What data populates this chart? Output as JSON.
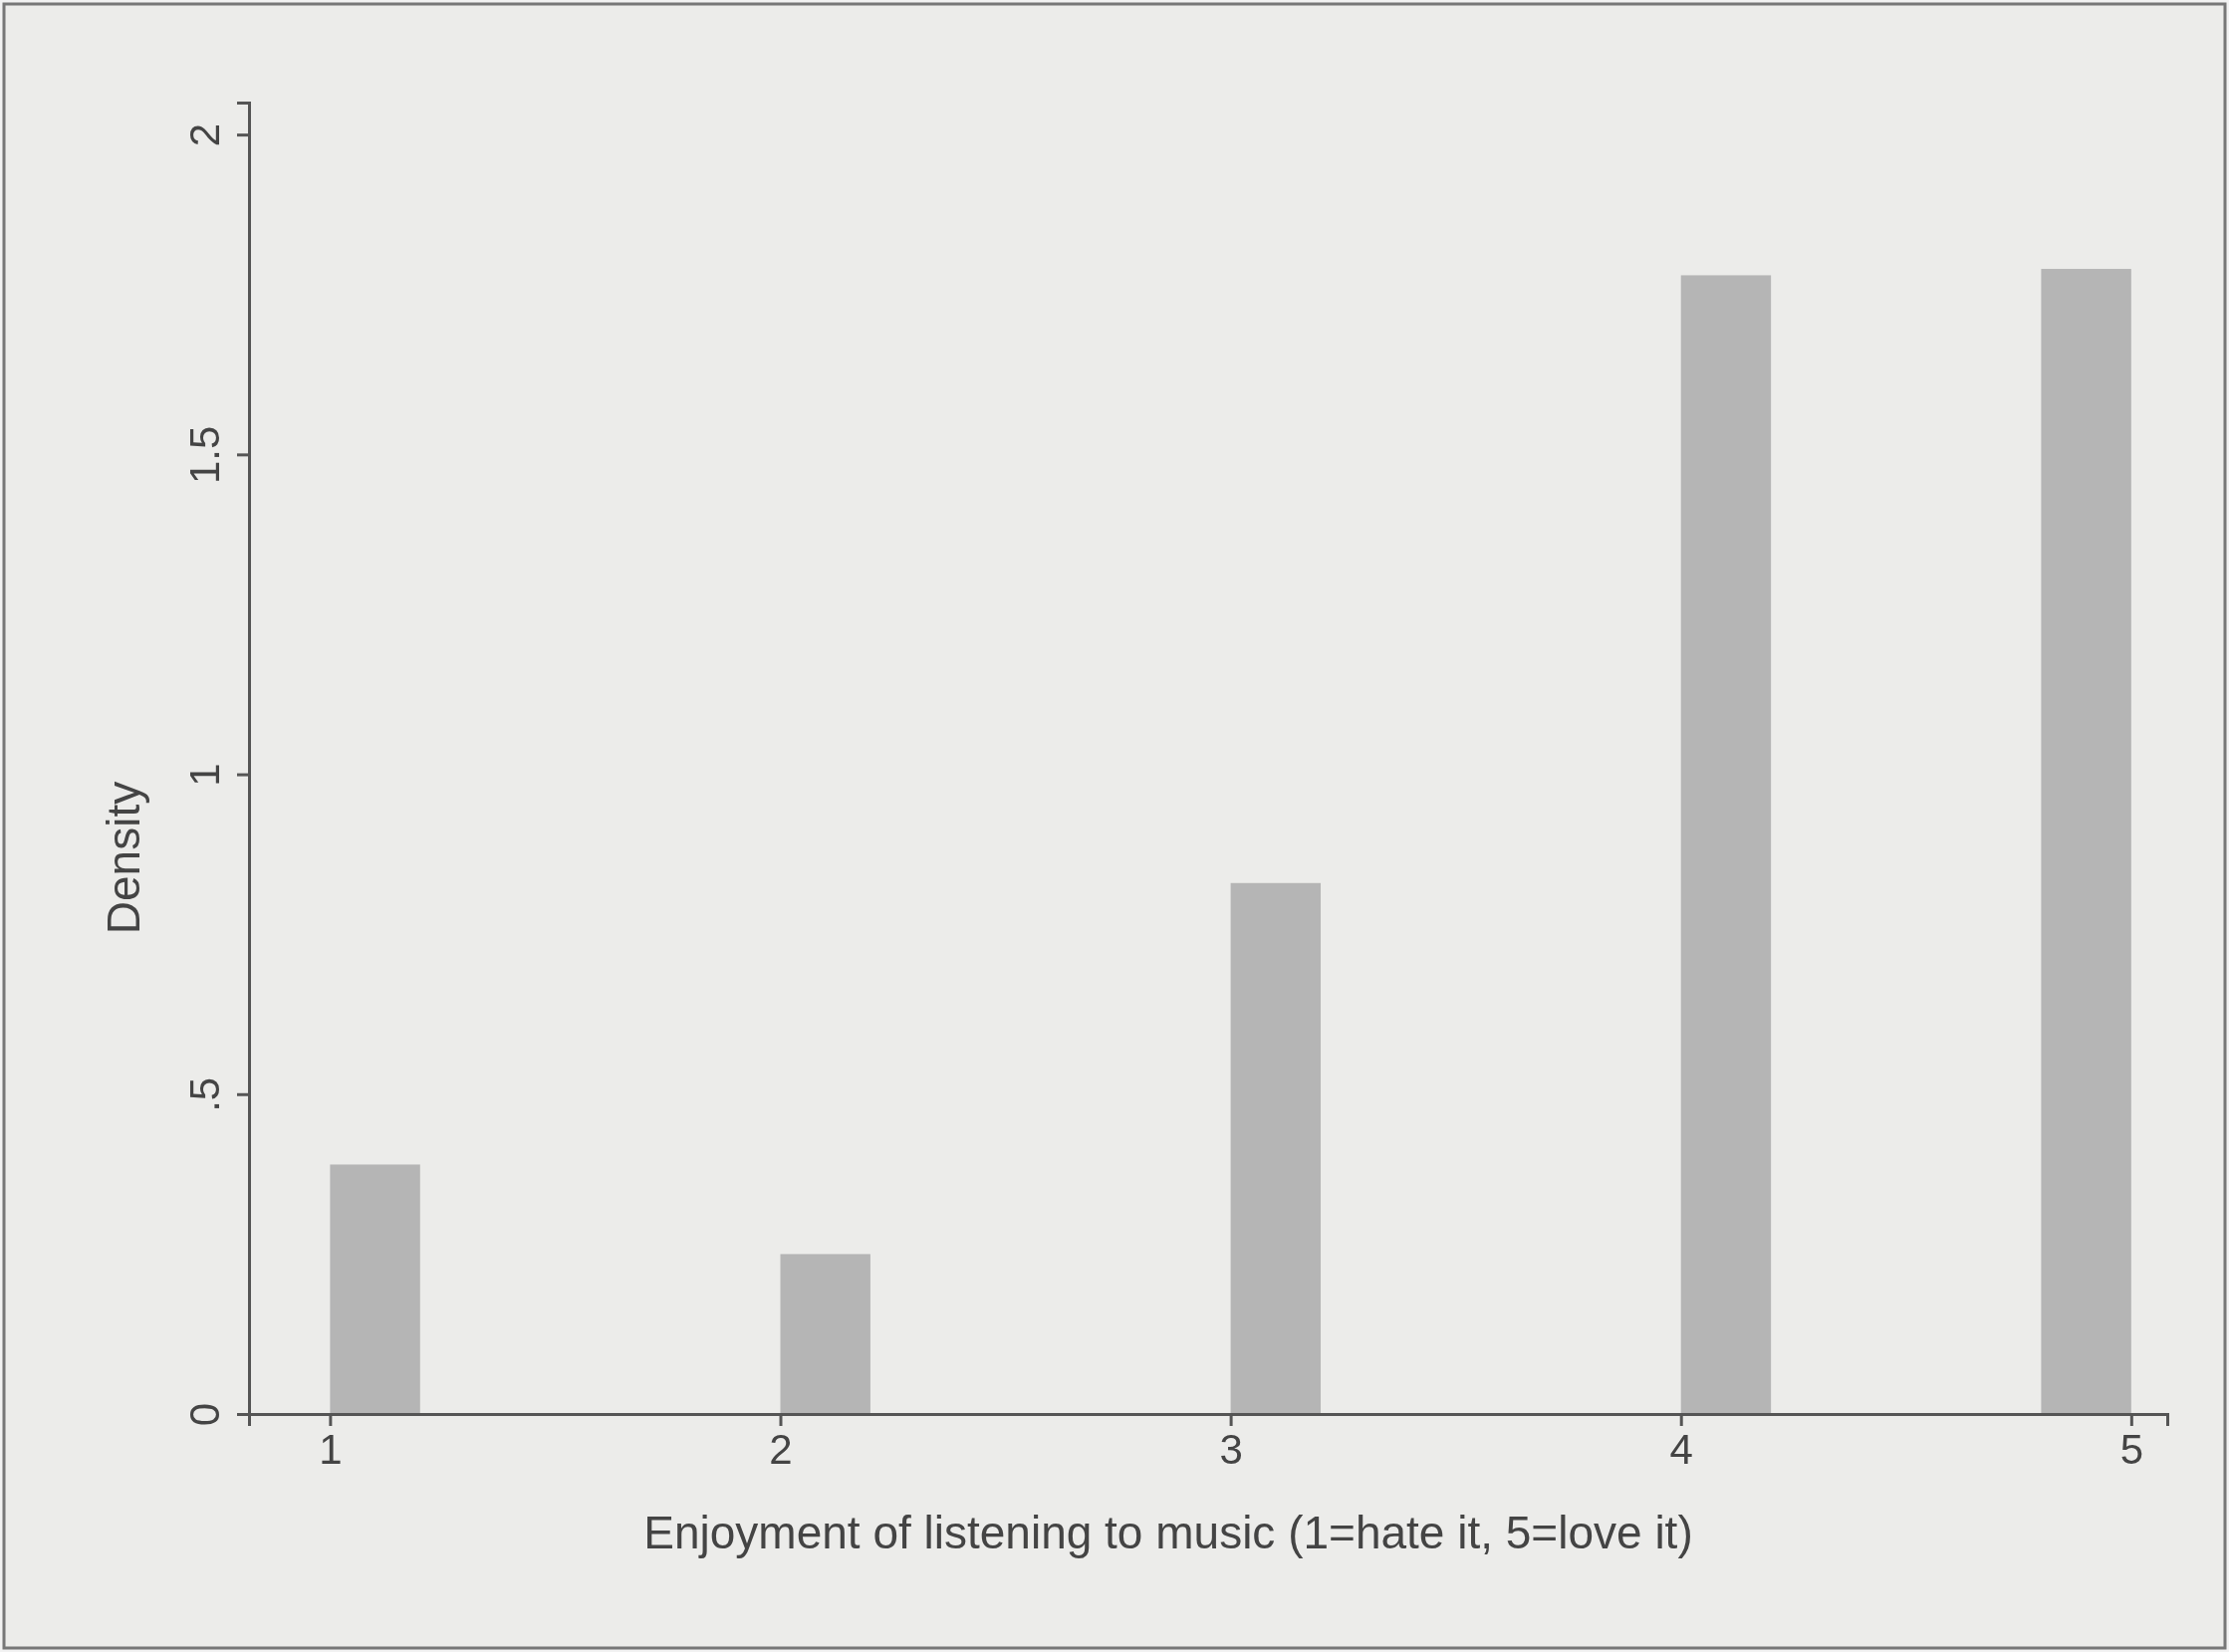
{
  "chart_data": {
    "type": "histogram",
    "xlabel": "Enjoyment of listening to music (1=hate it, 5=love it)",
    "ylabel": "Density",
    "bins": [
      1,
      1.2,
      1.4,
      1.6,
      1.8,
      2,
      2.2,
      2.4,
      2.6,
      2.8,
      3,
      3.2,
      3.4,
      3.6,
      3.8,
      4,
      4.2,
      4.4,
      4.6,
      4.8,
      5
    ],
    "values": [
      0.39,
      0,
      0,
      0,
      0,
      0.25,
      0,
      0,
      0,
      0,
      0.83,
      0,
      0,
      0,
      0,
      1.78,
      0,
      0,
      0,
      1.79
    ],
    "color": "#b5b5b5",
    "xlim": [
      0.82,
      5.08
    ],
    "xticks": [
      1,
      2,
      3,
      4,
      5
    ],
    "ylim": [
      0,
      2.05
    ],
    "yticks": [
      0,
      {
        "value": 0.5,
        "label": ".5"
      },
      1,
      1.5,
      2
    ],
    "grid": false
  }
}
